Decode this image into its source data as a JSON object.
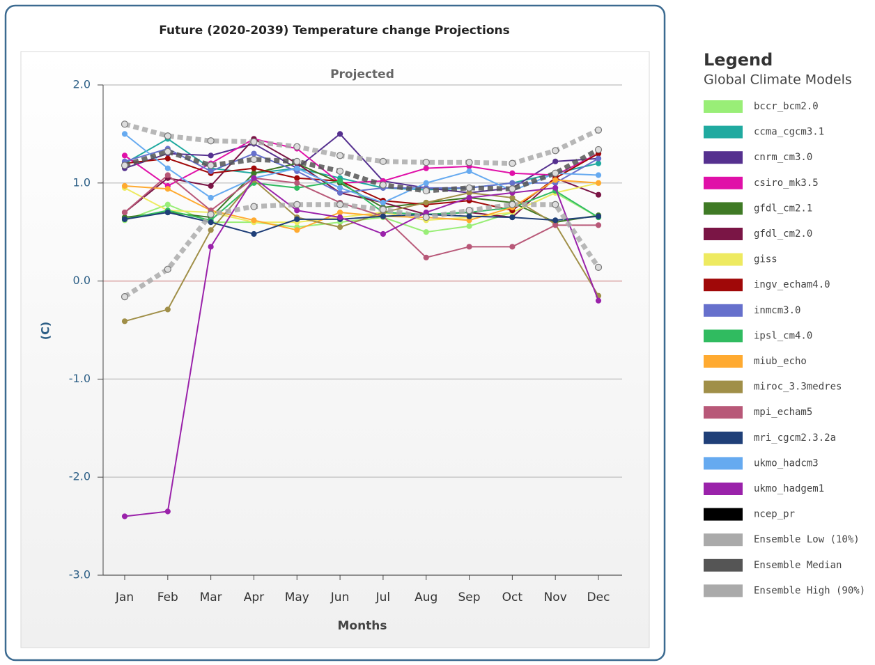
{
  "chart_data": {
    "type": "line",
    "title": "Future (2020-2039) Temperature change Projections",
    "subtitle": "Projected",
    "x_label": "Months",
    "y_label": "(C)",
    "legend_title": "Legend",
    "legend_subtitle": "Global Climate Models",
    "categories": [
      "Jan",
      "Feb",
      "Mar",
      "Apr",
      "May",
      "Jun",
      "Jul",
      "Aug",
      "Sep",
      "Oct",
      "Nov",
      "Dec"
    ],
    "ylim": [
      -3,
      2
    ],
    "yticks": [
      {
        "value": -3,
        "label": "-3.0"
      },
      {
        "value": -2,
        "label": "-2.0"
      },
      {
        "value": -1,
        "label": "-1.0"
      },
      {
        "value": 0,
        "label": "0.0"
      },
      {
        "value": 1,
        "label": "1.0"
      },
      {
        "value": 2,
        "label": "2.0"
      }
    ],
    "grid": true,
    "legend": "right",
    "series": [
      {
        "name": "bccr_bcm2.0",
        "color": "#99ee77",
        "values": [
          0.62,
          0.78,
          0.6,
          0.6,
          0.55,
          0.6,
          0.65,
          0.5,
          0.56,
          0.7,
          0.9,
          0.65
        ]
      },
      {
        "name": "ccma_cgcm3.1",
        "color": "#20aaa0",
        "values": [
          1.2,
          1.45,
          1.15,
          1.1,
          1.15,
          1.05,
          0.95,
          0.93,
          0.95,
          1.0,
          1.1,
          1.2
        ]
      },
      {
        "name": "cnrm_cm3.0",
        "color": "#55308f",
        "values": [
          1.15,
          1.3,
          1.28,
          1.4,
          1.15,
          1.5,
          1.02,
          0.95,
          0.9,
          0.95,
          1.22,
          1.25
        ]
      },
      {
        "name": "csiro_mk3.5",
        "color": "#e010a8",
        "values": [
          1.28,
          0.97,
          1.2,
          1.45,
          1.35,
          1.0,
          1.02,
          1.15,
          1.17,
          1.1,
          1.08,
          1.3
        ]
      },
      {
        "name": "gfdl_cm2.1",
        "color": "#3f7a25",
        "values": [
          0.65,
          0.7,
          0.65,
          1.1,
          1.2,
          1.0,
          0.75,
          0.8,
          0.85,
          0.8,
          0.6,
          0.67
        ]
      },
      {
        "name": "gfdl_cm2.0",
        "color": "#7a1545",
        "values": [
          0.7,
          1.05,
          0.97,
          1.45,
          1.2,
          0.9,
          0.8,
          0.68,
          0.7,
          0.65,
          1.05,
          0.88
        ]
      },
      {
        "name": "giss",
        "color": "#eeea60",
        "values": [
          0.95,
          0.72,
          0.7,
          0.6,
          0.6,
          0.65,
          0.7,
          0.62,
          0.65,
          0.7,
          0.9,
          1.0
        ]
      },
      {
        "name": "ingv_echam4.0",
        "color": "#a00808",
        "values": [
          1.2,
          1.25,
          1.1,
          1.15,
          1.05,
          1.02,
          0.82,
          0.78,
          0.82,
          0.72,
          1.05,
          1.3
        ]
      },
      {
        "name": "inmcm3.0",
        "color": "#6670cc",
        "values": [
          1.22,
          1.35,
          1.12,
          1.3,
          1.12,
          0.9,
          0.95,
          0.95,
          0.95,
          1.0,
          1.0,
          1.25
        ]
      },
      {
        "name": "ipsl_cm4.0",
        "color": "#30bb60",
        "values": [
          0.63,
          0.72,
          0.62,
          1.0,
          0.95,
          1.02,
          0.7,
          0.68,
          0.7,
          0.75,
          0.92,
          0.65
        ]
      },
      {
        "name": "miub_echo",
        "color": "#ffaa30",
        "values": [
          0.97,
          0.94,
          0.72,
          0.62,
          0.52,
          0.7,
          0.66,
          0.65,
          0.62,
          0.75,
          1.03,
          1.0
        ]
      },
      {
        "name": "miroc_3.3medres",
        "color": "#a08f48",
        "values": [
          -0.41,
          -0.29,
          0.52,
          1.03,
          0.65,
          0.55,
          0.7,
          0.8,
          0.9,
          0.85,
          0.58,
          -0.15
        ]
      },
      {
        "name": "mpi_echam5",
        "color": "#b85878",
        "values": [
          0.7,
          1.08,
          0.72,
          1.05,
          1.0,
          0.8,
          0.66,
          0.24,
          0.35,
          0.35,
          0.57,
          0.57
        ]
      },
      {
        "name": "mri_cgcm2.3.2a",
        "color": "#1f3f78",
        "values": [
          0.63,
          0.7,
          0.6,
          0.48,
          0.63,
          0.63,
          0.66,
          0.68,
          0.66,
          0.65,
          0.62,
          0.66
        ]
      },
      {
        "name": "ukmo_hadcm3",
        "color": "#66aaf0",
        "values": [
          1.5,
          1.15,
          0.85,
          1.05,
          1.15,
          0.95,
          0.8,
          1.0,
          1.12,
          0.92,
          1.1,
          1.08
        ]
      },
      {
        "name": "ukmo_hadgem1",
        "color": "#9a22aa",
        "values": [
          -2.4,
          -2.35,
          0.35,
          1.05,
          0.72,
          0.65,
          0.48,
          0.7,
          0.85,
          0.9,
          0.95,
          -0.2
        ]
      },
      {
        "name": "ncep_pr",
        "color": "#000000",
        "values": [
          null,
          null,
          null,
          null,
          null,
          null,
          null,
          null,
          null,
          null,
          null,
          null
        ]
      },
      {
        "name": "Ensemble Low (10%)",
        "color": "#aaaaaa",
        "style": "dashed",
        "values": [
          -0.16,
          0.12,
          0.68,
          0.76,
          0.78,
          0.78,
          0.73,
          0.65,
          0.72,
          0.78,
          0.78,
          0.14
        ]
      },
      {
        "name": "Ensemble Median",
        "color": "#555555",
        "style": "dashed",
        "values": [
          1.18,
          1.32,
          1.18,
          1.24,
          1.22,
          1.12,
          0.98,
          0.92,
          0.95,
          0.94,
          1.1,
          1.34
        ]
      },
      {
        "name": "Ensemble High (90%)",
        "color": "#aaaaaa",
        "style": "dashed",
        "values": [
          1.6,
          1.48,
          1.43,
          1.42,
          1.37,
          1.28,
          1.22,
          1.21,
          1.21,
          1.2,
          1.33,
          1.54
        ]
      }
    ]
  }
}
